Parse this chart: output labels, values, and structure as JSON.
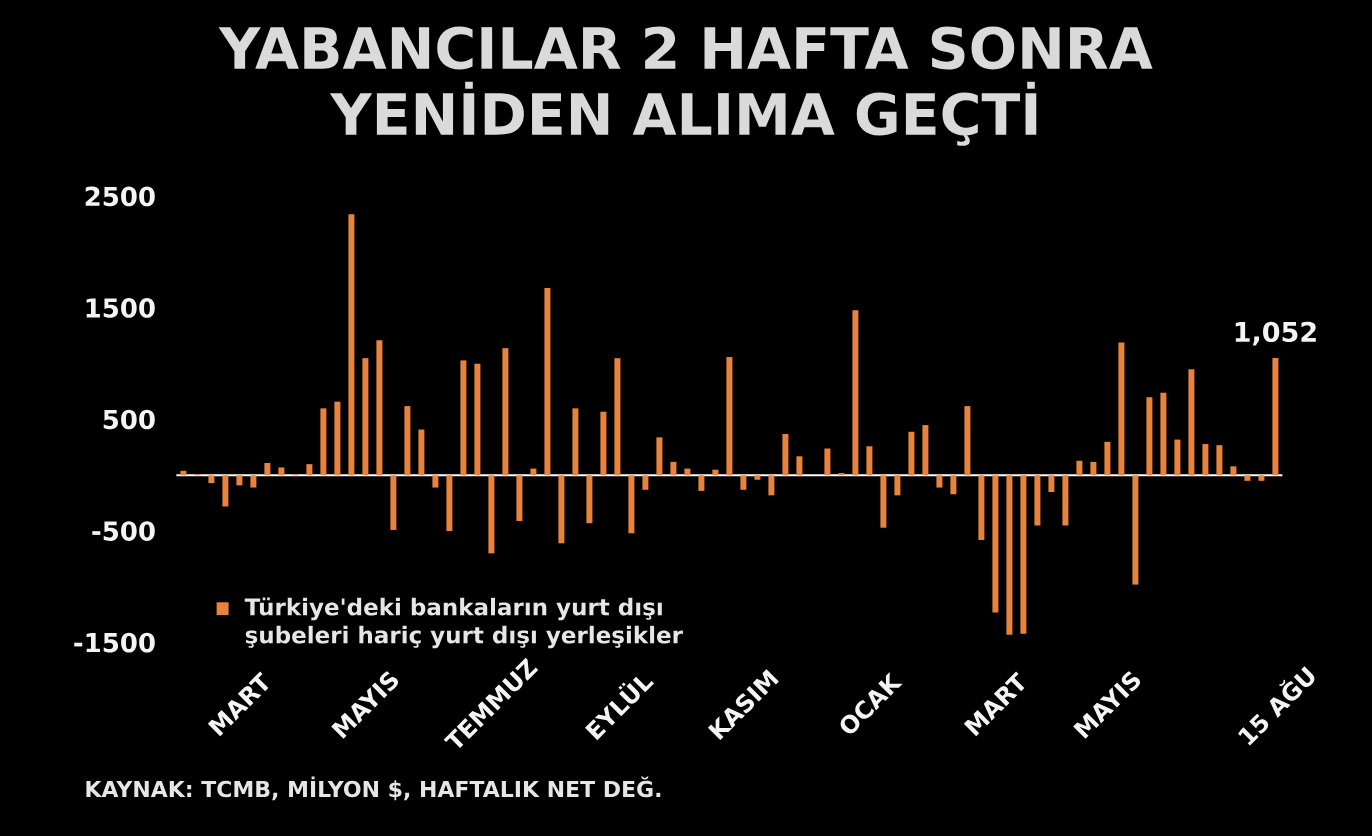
{
  "chart_data": {
    "type": "bar",
    "title": "YABANCILAR 2 HAFTA SONRA YENİDEN ALIMA GEÇTİ",
    "categories": [
      null,
      null,
      null,
      null,
      "MART",
      null,
      null,
      null,
      null,
      null,
      null,
      null,
      null,
      "MAYIS",
      null,
      null,
      null,
      null,
      null,
      null,
      null,
      null,
      "TEMMUZ",
      null,
      null,
      null,
      null,
      null,
      null,
      null,
      null,
      "EYLÜL",
      null,
      null,
      null,
      null,
      null,
      null,
      null,
      null,
      "KASIM",
      null,
      null,
      null,
      null,
      null,
      null,
      null,
      null,
      "OCAK",
      null,
      null,
      null,
      null,
      null,
      null,
      null,
      null,
      "MART",
      null,
      null,
      null,
      null,
      null,
      null,
      null,
      "MAYIS",
      null,
      null,
      null,
      null,
      null,
      null,
      null,
      null,
      null,
      null,
      null,
      "15 AĞU"
    ],
    "series": [
      {
        "name": "Türkiye'deki bankaların yurt dışı şubeleri hariç yurt dışı yerleşikler",
        "color": "#e8823c",
        "values": [
          40,
          10,
          -70,
          -280,
          -90,
          -110,
          110,
          70,
          10,
          100,
          600,
          660,
          2340,
          1050,
          1210,
          -490,
          620,
          410,
          -110,
          -500,
          1030,
          1000,
          -700,
          1140,
          -410,
          60,
          1680,
          -610,
          600,
          -430,
          570,
          1050,
          -520,
          -130,
          340,
          120,
          60,
          -140,
          50,
          1060,
          -130,
          -40,
          -180,
          370,
          170,
          null,
          240,
          20,
          1480,
          260,
          -470,
          -180,
          390,
          450,
          -110,
          -170,
          620,
          -580,
          -1230,
          -1430,
          -1420,
          -450,
          -150,
          -450,
          130,
          120,
          300,
          1190,
          -980,
          700,
          740,
          320,
          950,
          280,
          270,
          80,
          -50,
          -50,
          1052
        ],
        "value_labels": [
          null,
          null,
          null,
          null,
          null,
          null,
          null,
          null,
          null,
          null,
          null,
          null,
          null,
          null,
          null,
          null,
          null,
          null,
          null,
          null,
          null,
          null,
          null,
          null,
          null,
          null,
          null,
          null,
          null,
          null,
          null,
          null,
          null,
          null,
          null,
          null,
          null,
          null,
          null,
          null,
          null,
          null,
          null,
          null,
          null,
          null,
          null,
          null,
          null,
          null,
          null,
          null,
          null,
          null,
          null,
          null,
          null,
          null,
          null,
          null,
          null,
          null,
          null,
          null,
          null,
          null,
          null,
          null,
          null,
          null,
          null,
          null,
          null,
          null,
          null,
          null,
          null,
          null,
          "1,052"
        ]
      }
    ],
    "ylim": [
      -1500,
      2500
    ],
    "yticks": [
      -1500,
      -500,
      500,
      1500,
      2500
    ],
    "legend": "bottom left",
    "annotations": [
      "KAYNAK: TCMB, MİLYON $, HAFTALIK NET DEĞ."
    ]
  }
}
